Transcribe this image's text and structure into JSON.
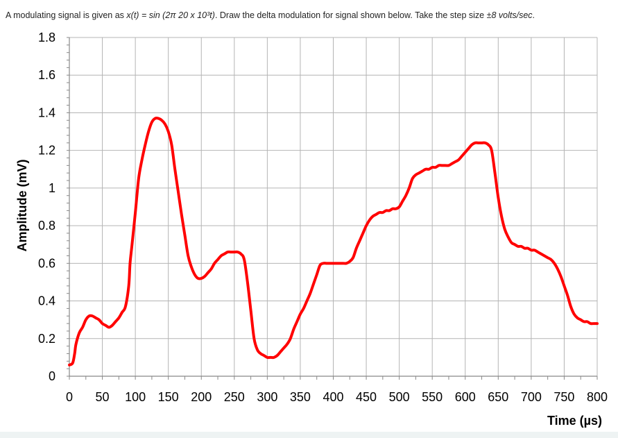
{
  "question": {
    "part1": "A modulating signal is given as ",
    "formula": "x(t) = sin (2π 20 x 10³t)",
    "part2": ". Draw the delta modulation for signal shown below. Take the step size ",
    "step": "±8 volts/sec",
    "part3": "."
  },
  "colors": {
    "line": "#ff0000",
    "grid": "#b4b4b4",
    "axis": "#888888",
    "text": "#000000"
  },
  "chart_data": {
    "type": "line",
    "title": "",
    "xlabel": "Time (µs)",
    "ylabel": "Amplitude (mV)",
    "xlim": [
      0,
      800
    ],
    "ylim": [
      0,
      1.8
    ],
    "grid": true,
    "xticks": [
      0,
      50,
      100,
      150,
      200,
      250,
      300,
      350,
      400,
      450,
      500,
      550,
      600,
      650,
      700,
      750,
      800
    ],
    "xtick_labels": [
      "0",
      "50",
      "100",
      "150",
      "200",
      "250",
      "300",
      "350",
      "400",
      "450",
      "500",
      "550",
      "600",
      "650",
      "700",
      "750",
      "800"
    ],
    "yticks": [
      0,
      0.2,
      0.4,
      0.6,
      0.8,
      1,
      1.2,
      1.4,
      1.6,
      1.8
    ],
    "ytick_labels": [
      "0",
      "0.2",
      "0.4",
      "0.6",
      "0.8",
      "1",
      "1.2",
      "1.4",
      "1.6",
      "1.8"
    ],
    "series": [
      {
        "x": [
          0,
          5,
          8,
          10,
          15,
          20,
          25,
          30,
          35,
          40,
          45,
          50,
          55,
          60,
          65,
          70,
          75,
          80,
          85,
          90,
          92,
          95,
          100,
          105,
          110,
          115,
          120,
          125,
          130,
          135,
          140,
          145,
          150,
          155,
          160,
          165,
          170,
          175,
          180,
          185,
          190,
          195,
          200,
          205,
          210,
          215,
          220,
          225,
          230,
          235,
          240,
          245,
          250,
          255,
          260,
          265,
          270,
          275,
          280,
          285,
          290,
          295,
          300,
          305,
          310,
          315,
          320,
          325,
          330,
          335,
          340,
          345,
          350,
          355,
          360,
          365,
          370,
          375,
          380,
          385,
          390,
          395,
          400,
          405,
          410,
          415,
          420,
          425,
          430,
          435,
          440,
          445,
          450,
          455,
          460,
          465,
          470,
          475,
          480,
          485,
          490,
          495,
          500,
          505,
          510,
          515,
          520,
          525,
          530,
          535,
          540,
          545,
          550,
          555,
          560,
          565,
          570,
          575,
          580,
          585,
          590,
          595,
          600,
          605,
          610,
          615,
          620,
          625,
          630,
          635,
          640,
          645,
          650,
          655,
          660,
          665,
          670,
          675,
          680,
          685,
          690,
          695,
          700,
          705,
          710,
          715,
          720,
          725,
          730,
          735,
          740,
          745,
          750,
          755,
          760,
          765,
          770,
          775,
          780,
          785,
          790,
          795,
          800
        ],
        "y": [
          0.06,
          0.07,
          0.12,
          0.17,
          0.23,
          0.26,
          0.3,
          0.32,
          0.32,
          0.31,
          0.3,
          0.28,
          0.27,
          0.26,
          0.27,
          0.29,
          0.31,
          0.34,
          0.37,
          0.48,
          0.6,
          0.7,
          0.87,
          1.05,
          1.15,
          1.23,
          1.3,
          1.35,
          1.37,
          1.37,
          1.36,
          1.34,
          1.3,
          1.23,
          1.1,
          0.98,
          0.86,
          0.75,
          0.64,
          0.58,
          0.54,
          0.52,
          0.52,
          0.53,
          0.55,
          0.57,
          0.6,
          0.62,
          0.64,
          0.65,
          0.66,
          0.66,
          0.66,
          0.66,
          0.65,
          0.62,
          0.5,
          0.35,
          0.2,
          0.14,
          0.12,
          0.11,
          0.1,
          0.1,
          0.1,
          0.11,
          0.13,
          0.15,
          0.17,
          0.2,
          0.25,
          0.29,
          0.33,
          0.36,
          0.4,
          0.44,
          0.49,
          0.54,
          0.59,
          0.6,
          0.6,
          0.6,
          0.6,
          0.6,
          0.6,
          0.6,
          0.6,
          0.61,
          0.63,
          0.68,
          0.72,
          0.76,
          0.8,
          0.83,
          0.85,
          0.86,
          0.87,
          0.87,
          0.88,
          0.88,
          0.89,
          0.89,
          0.9,
          0.93,
          0.96,
          1.0,
          1.05,
          1.07,
          1.08,
          1.09,
          1.1,
          1.1,
          1.11,
          1.11,
          1.12,
          1.12,
          1.12,
          1.12,
          1.13,
          1.14,
          1.15,
          1.17,
          1.19,
          1.21,
          1.23,
          1.24,
          1.24,
          1.24,
          1.24,
          1.23,
          1.2,
          1.08,
          0.95,
          0.85,
          0.78,
          0.74,
          0.71,
          0.7,
          0.69,
          0.69,
          0.68,
          0.68,
          0.67,
          0.67,
          0.66,
          0.65,
          0.64,
          0.63,
          0.62,
          0.6,
          0.57,
          0.53,
          0.48,
          0.43,
          0.37,
          0.33,
          0.31,
          0.3,
          0.29,
          0.29,
          0.28,
          0.28,
          0.28
        ]
      }
    ]
  }
}
